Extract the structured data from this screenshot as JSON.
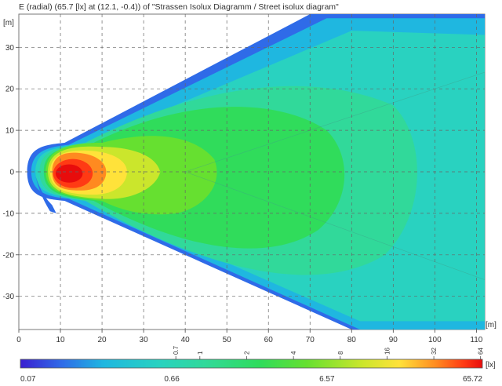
{
  "chart_data": {
    "type": "heatmap",
    "title": "E (radial) (65.7 [lx] at (12.1, -0.4)) of \"Strassen Isolux Diagramm / Street isolux diagram\"",
    "xlabel": "[m]",
    "ylabel": "[m]",
    "xlim": [
      0,
      112
    ],
    "ylim": [
      -38,
      38
    ],
    "x_ticks": [
      0,
      10,
      20,
      30,
      40,
      50,
      60,
      70,
      80,
      90,
      100,
      110
    ],
    "y_ticks": [
      30,
      20,
      10,
      0,
      -10,
      -20,
      -30
    ],
    "grid": true,
    "grid_style": "dashed",
    "peak": {
      "x": 12.1,
      "y": -0.4,
      "value": 65.7
    },
    "source": {
      "x": 2,
      "y": 0
    },
    "colorbar": {
      "unit": "[lx]",
      "scale": "log",
      "min": 0.07,
      "max": 65.72,
      "upper_ticks": [
        "0.7",
        "1",
        "2",
        "4",
        "8",
        "16",
        "32",
        "64"
      ],
      "upper_tick_values": [
        0.7,
        1,
        2,
        4,
        8,
        16,
        32,
        64
      ],
      "lower_labels": [
        "0.07",
        "0.66",
        "6.57",
        "65.72"
      ],
      "lower_label_values": [
        0.07,
        0.66,
        6.57,
        65.72
      ],
      "colors": [
        "#3a1fd0",
        "#2f6be8",
        "#1fb7e0",
        "#29d2c0",
        "#31d99a",
        "#30dc5b",
        "#66e030",
        "#cbe62c",
        "#ffe23a",
        "#ff8a20",
        "#ff3a14",
        "#e80c0c"
      ]
    }
  }
}
